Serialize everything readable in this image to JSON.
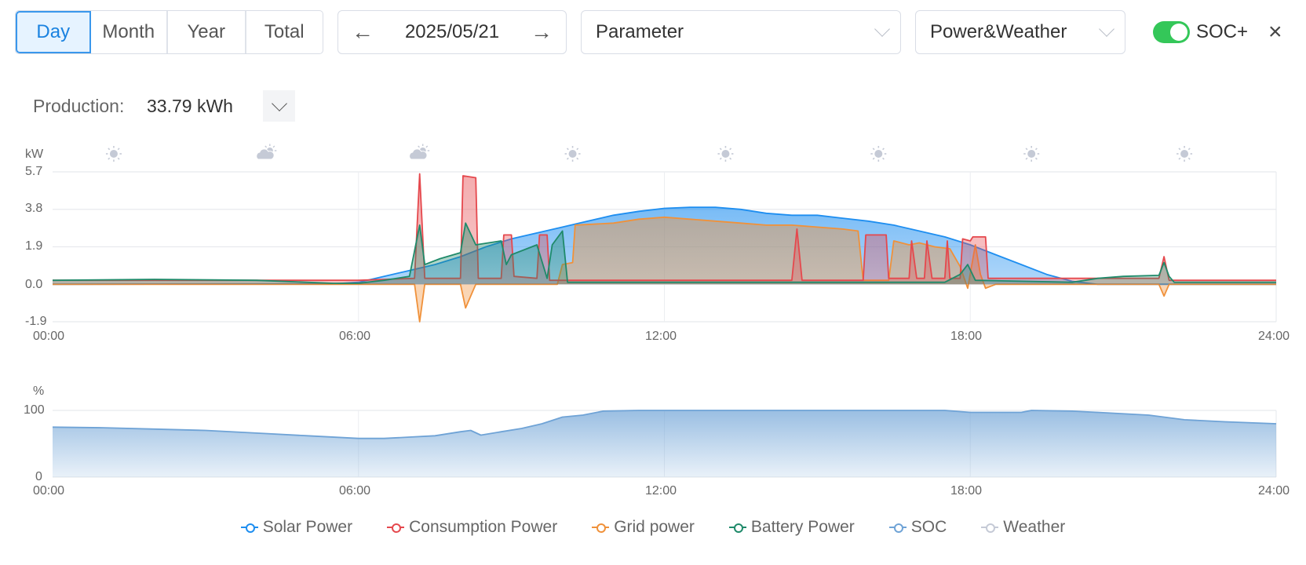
{
  "toolbar": {
    "periods": [
      "Day",
      "Month",
      "Year",
      "Total"
    ],
    "active_period": "Day",
    "date": "2025/05/21",
    "parameter_select": "Parameter",
    "view_select": "Power&Weather",
    "soc_toggle_label": "SOC+",
    "soc_toggle_on": true,
    "close_label": "×"
  },
  "summary": {
    "label": "Production:",
    "value": "33.79 kWh"
  },
  "colors": {
    "solar": "#1e8ef0",
    "consumption": "#e5484d",
    "grid": "#f0913a",
    "battery": "#1f8a6a",
    "soc": "#6fa3d6",
    "weather": "#c5cad6",
    "accent": "#1a82e0",
    "toggle": "#34c759"
  },
  "chart_data": [
    {
      "type": "area",
      "ylabel": "kW",
      "ylim": [
        -1.9,
        5.7
      ],
      "yticks": [
        "5.7",
        "3.8",
        "1.9",
        "0.0",
        "-1.9"
      ],
      "ytick_values": [
        5.7,
        3.8,
        1.9,
        0,
        -1.9
      ],
      "xlim": [
        0,
        24
      ],
      "xticks": [
        "00:00",
        "06:00",
        "12:00",
        "18:00",
        "24:00"
      ],
      "weather": [
        {
          "hour": 1.2,
          "icon": "sunny"
        },
        {
          "hour": 4.2,
          "icon": "partly-cloudy"
        },
        {
          "hour": 7.2,
          "icon": "partly-cloudy"
        },
        {
          "hour": 10.2,
          "icon": "sunny"
        },
        {
          "hour": 13.2,
          "icon": "sunny"
        },
        {
          "hour": 16.2,
          "icon": "sunny"
        },
        {
          "hour": 19.2,
          "icon": "sunny"
        },
        {
          "hour": 22.2,
          "icon": "sunny"
        }
      ],
      "series": [
        {
          "name": "Solar Power",
          "key": "solar",
          "points": [
            [
              0,
              0
            ],
            [
              5.5,
              0.02
            ],
            [
              6,
              0.1
            ],
            [
              6.5,
              0.4
            ],
            [
              7,
              0.7
            ],
            [
              7.5,
              1.0
            ],
            [
              8,
              1.4
            ],
            [
              8.5,
              1.9
            ],
            [
              9,
              2.3
            ],
            [
              9.5,
              2.6
            ],
            [
              10,
              2.9
            ],
            [
              10.5,
              3.2
            ],
            [
              11,
              3.5
            ],
            [
              11.5,
              3.7
            ],
            [
              12,
              3.85
            ],
            [
              12.5,
              3.9
            ],
            [
              13,
              3.9
            ],
            [
              13.5,
              3.8
            ],
            [
              14,
              3.6
            ],
            [
              14.5,
              3.5
            ],
            [
              15,
              3.5
            ],
            [
              15.5,
              3.35
            ],
            [
              16,
              3.2
            ],
            [
              16.5,
              3.0
            ],
            [
              17,
              2.7
            ],
            [
              17.5,
              2.4
            ],
            [
              18,
              2.0
            ],
            [
              18.5,
              1.5
            ],
            [
              19,
              1.0
            ],
            [
              19.5,
              0.5
            ],
            [
              20,
              0.15
            ],
            [
              20.5,
              0
            ],
            [
              24,
              0
            ]
          ]
        },
        {
          "name": "Grid power",
          "key": "grid",
          "points": [
            [
              0,
              0
            ],
            [
              7.1,
              0
            ],
            [
              7.2,
              -1.9
            ],
            [
              7.3,
              0
            ],
            [
              8.0,
              0
            ],
            [
              8.1,
              -1.2
            ],
            [
              8.3,
              0
            ],
            [
              9.9,
              0
            ],
            [
              10.0,
              1.0
            ],
            [
              10.2,
              1.1
            ],
            [
              10.25,
              3.0
            ],
            [
              11,
              3.1
            ],
            [
              11.5,
              3.3
            ],
            [
              12,
              3.4
            ],
            [
              12.5,
              3.3
            ],
            [
              13,
              3.2
            ],
            [
              13.5,
              3.1
            ],
            [
              14,
              3.0
            ],
            [
              14.5,
              3.0
            ],
            [
              15,
              2.9
            ],
            [
              15.5,
              2.8
            ],
            [
              15.8,
              2.7
            ],
            [
              15.9,
              0.2
            ],
            [
              16.4,
              0.2
            ],
            [
              16.5,
              2.2
            ],
            [
              16.8,
              2.0
            ],
            [
              17,
              2.1
            ],
            [
              17.3,
              1.9
            ],
            [
              17.6,
              1.8
            ],
            [
              17.8,
              0.9
            ],
            [
              17.95,
              -0.2
            ],
            [
              18.1,
              2.0
            ],
            [
              18.2,
              0.5
            ],
            [
              18.3,
              -0.2
            ],
            [
              18.5,
              0
            ],
            [
              21.7,
              0
            ],
            [
              21.8,
              -0.6
            ],
            [
              21.9,
              0
            ],
            [
              24,
              0
            ]
          ]
        },
        {
          "name": "Consumption Power",
          "key": "consumption",
          "points": [
            [
              0,
              0.2
            ],
            [
              6,
              0.2
            ],
            [
              7.1,
              0.3
            ],
            [
              7.2,
              5.6
            ],
            [
              7.3,
              0.3
            ],
            [
              8.0,
              0.3
            ],
            [
              8.05,
              5.5
            ],
            [
              8.3,
              5.4
            ],
            [
              8.35,
              0.3
            ],
            [
              8.8,
              0.3
            ],
            [
              8.85,
              2.5
            ],
            [
              9.0,
              2.5
            ],
            [
              9.05,
              0.4
            ],
            [
              9.5,
              0.3
            ],
            [
              9.55,
              2.5
            ],
            [
              9.7,
              2.5
            ],
            [
              9.75,
              0.2
            ],
            [
              14.5,
              0.2
            ],
            [
              14.6,
              2.8
            ],
            [
              14.7,
              0.2
            ],
            [
              15.9,
              0.2
            ],
            [
              15.95,
              2.5
            ],
            [
              16.35,
              2.5
            ],
            [
              16.4,
              0.3
            ],
            [
              16.8,
              0.3
            ],
            [
              16.85,
              2.2
            ],
            [
              16.95,
              0.3
            ],
            [
              17.1,
              0.3
            ],
            [
              17.15,
              2.2
            ],
            [
              17.25,
              0.3
            ],
            [
              17.5,
              0.3
            ],
            [
              17.55,
              2.2
            ],
            [
              17.6,
              0.3
            ],
            [
              17.8,
              0.3
            ],
            [
              17.85,
              2.3
            ],
            [
              18.0,
              2.2
            ],
            [
              18.05,
              2.4
            ],
            [
              18.3,
              2.4
            ],
            [
              18.35,
              0.3
            ],
            [
              21.7,
              0.3
            ],
            [
              21.8,
              1.4
            ],
            [
              21.9,
              0.2
            ],
            [
              24,
              0.2
            ]
          ]
        },
        {
          "name": "Battery Power",
          "key": "battery",
          "points": [
            [
              0,
              0.2
            ],
            [
              2,
              0.25
            ],
            [
              4,
              0.2
            ],
            [
              5.5,
              0.05
            ],
            [
              6,
              0.05
            ],
            [
              6.5,
              0.2
            ],
            [
              7.0,
              0.4
            ],
            [
              7.2,
              3.0
            ],
            [
              7.3,
              1.0
            ],
            [
              7.6,
              1.3
            ],
            [
              8.0,
              1.6
            ],
            [
              8.1,
              3.1
            ],
            [
              8.3,
              2.0
            ],
            [
              8.8,
              2.2
            ],
            [
              8.9,
              1.0
            ],
            [
              9.0,
              1.5
            ],
            [
              9.5,
              2.0
            ],
            [
              9.7,
              0.3
            ],
            [
              9.8,
              2.0
            ],
            [
              10.0,
              2.7
            ],
            [
              10.1,
              0.1
            ],
            [
              17.5,
              0.1
            ],
            [
              17.8,
              0.5
            ],
            [
              17.95,
              1.0
            ],
            [
              18.1,
              0.2
            ],
            [
              20,
              0.1
            ],
            [
              20.5,
              0.3
            ],
            [
              21,
              0.4
            ],
            [
              21.7,
              0.45
            ],
            [
              21.8,
              1.1
            ],
            [
              21.9,
              0.4
            ],
            [
              22,
              0.1
            ],
            [
              24,
              0.1
            ]
          ]
        },
        {
          "name": "SOC",
          "key": "soc"
        },
        {
          "name": "Weather",
          "key": "weather"
        }
      ]
    },
    {
      "type": "area",
      "ylabel": "%",
      "ylim": [
        0,
        100
      ],
      "yticks": [
        "100",
        "0"
      ],
      "ytick_values": [
        100,
        0
      ],
      "xlim": [
        0,
        24
      ],
      "xticks": [
        "00:00",
        "06:00",
        "12:00",
        "18:00",
        "24:00"
      ],
      "series": [
        {
          "name": "SOC",
          "key": "soc",
          "points": [
            [
              0,
              75
            ],
            [
              1,
              74
            ],
            [
              2,
              72
            ],
            [
              3,
              70
            ],
            [
              4,
              66
            ],
            [
              5,
              62
            ],
            [
              6,
              58
            ],
            [
              6.5,
              58
            ],
            [
              7,
              60
            ],
            [
              7.5,
              62
            ],
            [
              8,
              68
            ],
            [
              8.2,
              70
            ],
            [
              8.4,
              63
            ],
            [
              8.8,
              68
            ],
            [
              9.2,
              73
            ],
            [
              9.6,
              80
            ],
            [
              10,
              90
            ],
            [
              10.4,
              93
            ],
            [
              10.8,
              99
            ],
            [
              11.5,
              100
            ],
            [
              17.5,
              100
            ],
            [
              18,
              97
            ],
            [
              19,
              97
            ],
            [
              19.2,
              100
            ],
            [
              20,
              99
            ],
            [
              20.5,
              97
            ],
            [
              21.5,
              93
            ],
            [
              22.2,
              86
            ],
            [
              23,
              83
            ],
            [
              24,
              80
            ]
          ]
        }
      ]
    }
  ]
}
